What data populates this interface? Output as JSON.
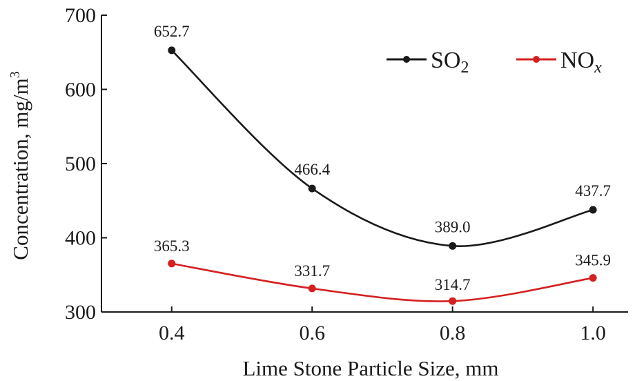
{
  "chart_data": {
    "type": "line",
    "xlabel": "Lime Stone Particle Size, mm",
    "ylabel_main": "Concentration, mg/m",
    "ylabel_sup": "3",
    "x": [
      0.4,
      0.6,
      0.8,
      1.0
    ],
    "x_tick_labels": [
      "0.4",
      "0.6",
      "0.8",
      "1.0"
    ],
    "y_tick_labels": [
      "300",
      "400",
      "500",
      "600",
      "700"
    ],
    "ylim": [
      300,
      700
    ],
    "xlim": [
      0.3,
      1.05
    ],
    "legend_position": "top-right",
    "series": [
      {
        "name_main": "SO",
        "name_sub": "2",
        "values": [
          652.7,
          466.4,
          389.0,
          437.7
        ],
        "labels": [
          "652.7",
          "466.4",
          "389.0",
          "437.7"
        ],
        "color": "#1a1a1a"
      },
      {
        "name_main": "NO",
        "name_sub": "x",
        "values": [
          365.3,
          331.7,
          314.7,
          345.9
        ],
        "labels": [
          "365.3",
          "331.7",
          "314.7",
          "345.9"
        ],
        "color": "#d42020"
      }
    ]
  }
}
